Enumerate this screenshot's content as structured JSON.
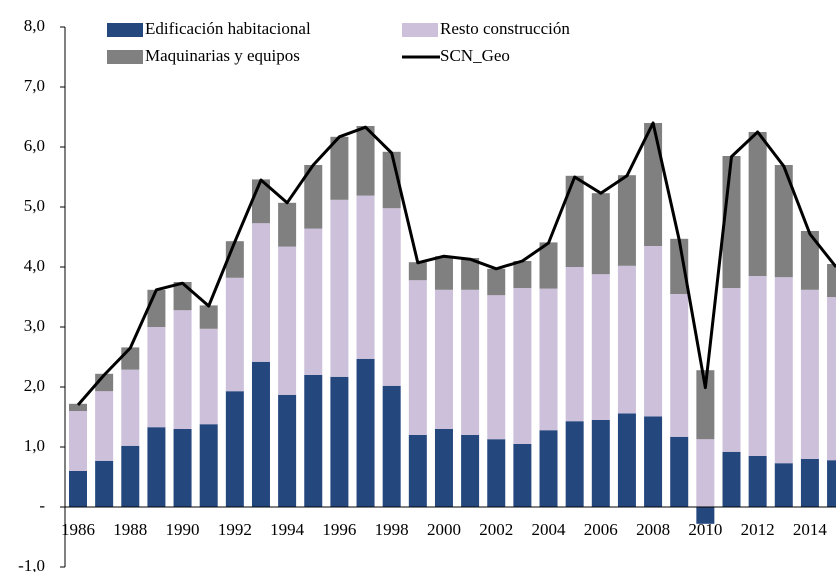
{
  "chart_data": {
    "type": "stacked_bar_line",
    "categories": [
      "1986",
      null,
      "1988",
      null,
      "1990",
      null,
      "1992",
      null,
      "1994",
      null,
      "1996",
      null,
      "1998",
      null,
      "2000",
      null,
      "2002",
      null,
      "2004",
      null,
      "2006",
      null,
      "2008",
      null,
      "2010",
      null,
      "2012",
      null,
      "2014",
      null
    ],
    "series": [
      {
        "name": "Edificación habitacional",
        "color": "#24477e",
        "kind": "bar",
        "values": [
          0.6,
          0.77,
          1.02,
          1.33,
          1.3,
          1.38,
          1.93,
          2.42,
          1.87,
          2.2,
          2.17,
          2.47,
          2.02,
          1.2,
          1.3,
          1.2,
          1.13,
          1.05,
          1.28,
          1.43,
          1.45,
          1.56,
          1.51,
          1.17,
          -0.28,
          0.92,
          0.85,
          0.73,
          0.8,
          0.78
        ]
      },
      {
        "name": "Resto construcción",
        "color": "#ccc0da",
        "kind": "bar",
        "values": [
          1.0,
          1.16,
          1.27,
          1.67,
          1.98,
          1.59,
          1.89,
          2.31,
          2.47,
          2.44,
          2.95,
          2.72,
          2.96,
          2.58,
          2.32,
          2.42,
          2.4,
          2.6,
          2.36,
          2.57,
          2.43,
          2.46,
          2.84,
          2.38,
          1.13,
          2.73,
          3.0,
          3.1,
          2.82,
          2.72
        ]
      },
      {
        "name": "Maquinarias y equipos",
        "color": "#808080",
        "kind": "bar",
        "values": [
          0.12,
          0.29,
          0.37,
          0.62,
          0.47,
          0.39,
          0.61,
          0.73,
          0.73,
          1.06,
          1.05,
          1.16,
          0.94,
          0.3,
          0.56,
          0.53,
          0.44,
          0.45,
          0.77,
          1.52,
          1.35,
          1.51,
          2.05,
          0.92,
          1.15,
          2.2,
          2.4,
          1.87,
          0.98,
          0.55
        ]
      },
      {
        "name": "SCN_Geo",
        "color": "#000000",
        "kind": "line",
        "values": [
          1.7,
          2.2,
          2.65,
          3.62,
          3.73,
          3.35,
          4.42,
          5.45,
          5.07,
          5.7,
          6.17,
          6.33,
          5.9,
          4.07,
          4.18,
          4.13,
          3.97,
          4.1,
          4.4,
          5.5,
          5.23,
          5.52,
          6.4,
          4.45,
          1.99,
          5.84,
          6.25,
          5.68,
          4.55,
          4.0
        ]
      }
    ],
    "ylim": [
      -1,
      8
    ],
    "yticks": [
      {
        "value": -1,
        "label": "-1,0"
      },
      {
        "value": 0,
        "label": "-"
      },
      {
        "value": 1,
        "label": "1,0"
      },
      {
        "value": 2,
        "label": "2,0"
      },
      {
        "value": 3,
        "label": "3,0"
      },
      {
        "value": 4,
        "label": "4,0"
      },
      {
        "value": 5,
        "label": "5,0"
      },
      {
        "value": 6,
        "label": "6,0"
      },
      {
        "value": 7,
        "label": "7,0"
      },
      {
        "value": 8,
        "label": "8,0"
      }
    ],
    "grid": false
  }
}
